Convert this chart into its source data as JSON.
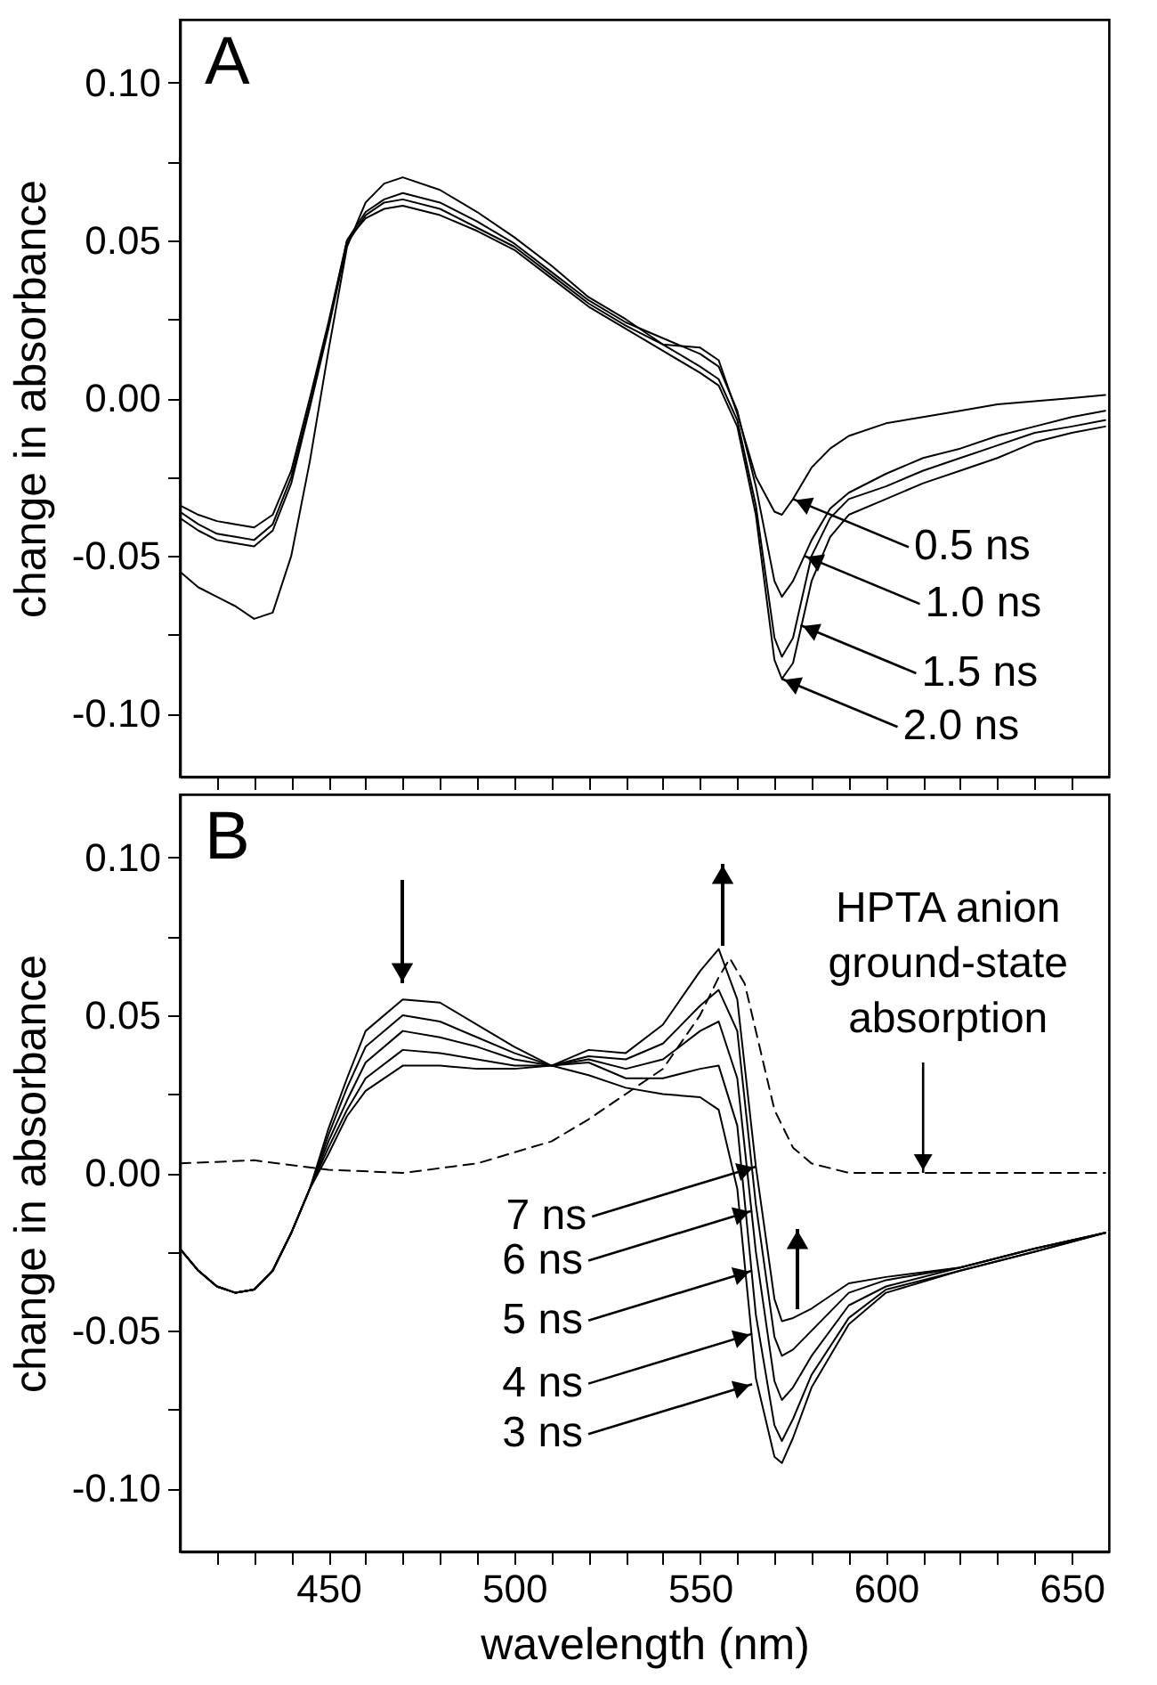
{
  "chart_data": [
    {
      "type": "line",
      "ylabel": "change in absorbance",
      "xlim": [
        410,
        660
      ],
      "ylim": [
        -0.12,
        0.12
      ],
      "tick_labels": "y",
      "xticks": [
        {
          "value": 420,
          "label": null
        },
        {
          "value": 430,
          "label": null
        },
        {
          "value": 440,
          "label": null
        },
        450,
        {
          "value": 460,
          "label": null
        },
        {
          "value": 470,
          "label": null
        },
        {
          "value": 480,
          "label": null
        },
        {
          "value": 490,
          "label": null
        },
        500,
        {
          "value": 510,
          "label": null
        },
        {
          "value": 520,
          "label": null
        },
        {
          "value": 530,
          "label": null
        },
        {
          "value": 540,
          "label": null
        },
        550,
        {
          "value": 560,
          "label": null
        },
        {
          "value": 570,
          "label": null
        },
        {
          "value": 580,
          "label": null
        },
        {
          "value": 590,
          "label": null
        },
        600,
        {
          "value": 610,
          "label": null
        },
        {
          "value": 620,
          "label": null
        },
        {
          "value": 630,
          "label": null
        },
        {
          "value": 640,
          "label": null
        },
        650
      ],
      "yticks": [
        {
          "value": -0.1,
          "label": "-0.10"
        },
        {
          "value": -0.075,
          "label": null
        },
        {
          "value": -0.05,
          "label": "-0.05"
        },
        {
          "value": -0.025,
          "label": null
        },
        {
          "value": 0,
          "label": "0.00"
        },
        {
          "value": 0.025,
          "label": null
        },
        {
          "value": 0.05,
          "label": "0.05"
        },
        {
          "value": 0.075,
          "label": null
        },
        {
          "value": 0.1,
          "label": "0.10"
        }
      ],
      "x": [
        410,
        415,
        420,
        425,
        430,
        435,
        440,
        445,
        450,
        455,
        460,
        465,
        470,
        480,
        490,
        500,
        510,
        520,
        530,
        540,
        550,
        555,
        560,
        565,
        570,
        572,
        575,
        580,
        585,
        590,
        600,
        610,
        620,
        630,
        640,
        650,
        659
      ],
      "series": [
        {
          "color": "#000000",
          "values": [
            -0.055,
            -0.06,
            -0.063,
            -0.066,
            -0.07,
            -0.068,
            -0.05,
            -0.02,
            0.015,
            0.048,
            0.062,
            0.068,
            0.07,
            0.066,
            0.059,
            0.051,
            0.042,
            0.032,
            0.025,
            0.017,
            0.016,
            0.012,
            -0.005,
            -0.025,
            -0.036,
            -0.037,
            -0.032,
            -0.022,
            -0.016,
            -0.012,
            -0.008,
            -0.006,
            -0.004,
            -0.002,
            -0.001,
            0.0,
            0.001
          ]
        },
        {
          "color": "#000000",
          "values": [
            -0.036,
            -0.04,
            -0.043,
            -0.044,
            -0.045,
            -0.04,
            -0.025,
            -0.002,
            0.023,
            0.05,
            0.059,
            0.063,
            0.065,
            0.062,
            0.056,
            0.049,
            0.04,
            0.031,
            0.024,
            0.019,
            0.014,
            0.01,
            -0.004,
            -0.028,
            -0.058,
            -0.063,
            -0.058,
            -0.045,
            -0.035,
            -0.03,
            -0.024,
            -0.019,
            -0.016,
            -0.012,
            -0.009,
            -0.006,
            -0.004
          ]
        },
        {
          "color": "#000000",
          "values": [
            -0.038,
            -0.042,
            -0.045,
            -0.046,
            -0.047,
            -0.042,
            -0.027,
            -0.003,
            0.022,
            0.049,
            0.058,
            0.062,
            0.063,
            0.06,
            0.054,
            0.048,
            0.039,
            0.03,
            0.023,
            0.017,
            0.01,
            0.006,
            -0.007,
            -0.034,
            -0.076,
            -0.082,
            -0.076,
            -0.05,
            -0.038,
            -0.032,
            -0.028,
            -0.023,
            -0.019,
            -0.015,
            -0.011,
            -0.009,
            -0.007
          ]
        },
        {
          "color": "#000000",
          "values": [
            -0.034,
            -0.037,
            -0.039,
            -0.04,
            -0.041,
            -0.037,
            -0.023,
            0.0,
            0.024,
            0.05,
            0.057,
            0.06,
            0.061,
            0.058,
            0.053,
            0.047,
            0.038,
            0.029,
            0.022,
            0.015,
            0.008,
            0.004,
            -0.009,
            -0.037,
            -0.083,
            -0.089,
            -0.084,
            -0.058,
            -0.044,
            -0.037,
            -0.032,
            -0.027,
            -0.023,
            -0.019,
            -0.014,
            -0.011,
            -0.009
          ]
        }
      ],
      "annotations": [
        "A",
        {
          "text": "0.5 ns",
          "x": 575,
          "y": -0.032
        },
        {
          "text": "1.0 ns",
          "x": 578,
          "y": -0.05
        },
        {
          "text": "1.5 ns",
          "x": 577,
          "y": -0.072
        },
        {
          "text": "2.0 ns",
          "x": 572,
          "y": -0.089
        }
      ]
    },
    {
      "type": "line",
      "xlabel": "wavelength (nm)",
      "ylabel": "change in absorbance",
      "xlim": [
        410,
        660
      ],
      "ylim": [
        -0.12,
        0.12
      ],
      "xticks": [
        {
          "value": 420,
          "label": null
        },
        {
          "value": 430,
          "label": null
        },
        {
          "value": 440,
          "label": null
        },
        450,
        {
          "value": 460,
          "label": null
        },
        {
          "value": 470,
          "label": null
        },
        {
          "value": 480,
          "label": null
        },
        {
          "value": 490,
          "label": null
        },
        500,
        {
          "value": 510,
          "label": null
        },
        {
          "value": 520,
          "label": null
        },
        {
          "value": 530,
          "label": null
        },
        {
          "value": 540,
          "label": null
        },
        550,
        {
          "value": 560,
          "label": null
        },
        {
          "value": 570,
          "label": null
        },
        {
          "value": 580,
          "label": null
        },
        {
          "value": 590,
          "label": null
        },
        600,
        {
          "value": 610,
          "label": null
        },
        {
          "value": 620,
          "label": null
        },
        {
          "value": 630,
          "label": null
        },
        {
          "value": 640,
          "label": null
        },
        650
      ],
      "yticks": [
        {
          "value": -0.1,
          "label": "-0.10"
        },
        {
          "value": -0.075,
          "label": null
        },
        {
          "value": -0.05,
          "label": "-0.05"
        },
        {
          "value": -0.025,
          "label": null
        },
        {
          "value": 0,
          "label": "0.00"
        },
        {
          "value": 0.025,
          "label": null
        },
        {
          "value": 0.05,
          "label": "0.05"
        },
        {
          "value": 0.075,
          "label": null
        },
        {
          "value": 0.1,
          "label": "0.10"
        }
      ],
      "x": [
        410,
        415,
        420,
        425,
        430,
        435,
        440,
        445,
        450,
        455,
        460,
        470,
        480,
        490,
        500,
        510,
        520,
        530,
        540,
        550,
        555,
        560,
        565,
        570,
        572,
        575,
        580,
        590,
        600,
        620,
        640,
        659
      ],
      "series": [
        {
          "color": "#000000",
          "values": [
            -0.024,
            -0.031,
            -0.036,
            -0.038,
            -0.037,
            -0.031,
            -0.019,
            -0.005,
            0.014,
            0.03,
            0.045,
            0.055,
            0.054,
            0.047,
            0.04,
            0.034,
            0.031,
            0.027,
            0.025,
            0.024,
            0.02,
            -0.005,
            -0.065,
            -0.09,
            -0.092,
            -0.084,
            -0.068,
            -0.048,
            -0.038,
            -0.031,
            -0.025,
            -0.019
          ]
        },
        {
          "color": "#000000",
          "values": [
            -0.024,
            -0.031,
            -0.036,
            -0.038,
            -0.037,
            -0.031,
            -0.019,
            -0.005,
            0.012,
            0.027,
            0.04,
            0.05,
            0.048,
            0.043,
            0.038,
            0.034,
            0.035,
            0.03,
            0.03,
            0.033,
            0.034,
            0.015,
            -0.045,
            -0.08,
            -0.085,
            -0.078,
            -0.064,
            -0.046,
            -0.037,
            -0.031,
            -0.025,
            -0.019
          ]
        },
        {
          "color": "#000000",
          "values": [
            -0.024,
            -0.031,
            -0.036,
            -0.038,
            -0.037,
            -0.031,
            -0.019,
            -0.005,
            0.01,
            0.023,
            0.035,
            0.045,
            0.043,
            0.04,
            0.036,
            0.034,
            0.036,
            0.033,
            0.036,
            0.045,
            0.048,
            0.03,
            -0.025,
            -0.066,
            -0.072,
            -0.068,
            -0.058,
            -0.042,
            -0.036,
            -0.03,
            -0.024,
            -0.019
          ]
        },
        {
          "color": "#000000",
          "values": [
            -0.024,
            -0.031,
            -0.036,
            -0.038,
            -0.037,
            -0.031,
            -0.019,
            -0.005,
            0.008,
            0.02,
            0.03,
            0.039,
            0.038,
            0.036,
            0.034,
            0.034,
            0.037,
            0.036,
            0.041,
            0.053,
            0.058,
            0.045,
            -0.01,
            -0.052,
            -0.058,
            -0.056,
            -0.05,
            -0.038,
            -0.034,
            -0.03,
            -0.024,
            -0.019
          ]
        },
        {
          "color": "#000000",
          "values": [
            -0.024,
            -0.031,
            -0.036,
            -0.038,
            -0.037,
            -0.031,
            -0.019,
            -0.005,
            0.006,
            0.018,
            0.026,
            0.034,
            0.034,
            0.033,
            0.033,
            0.034,
            0.039,
            0.038,
            0.047,
            0.064,
            0.071,
            0.055,
            0.002,
            -0.04,
            -0.047,
            -0.046,
            -0.043,
            -0.035,
            -0.033,
            -0.03,
            -0.024,
            -0.019
          ]
        },
        {
          "color": "#000000",
          "line_style": "dashed",
          "x": [
            410,
            430,
            450,
            470,
            490,
            510,
            520,
            530,
            540,
            550,
            555,
            558,
            562,
            566,
            570,
            575,
            580,
            590,
            610,
            659
          ],
          "values": [
            0.003,
            0.004,
            0.001,
            0.0,
            0.003,
            0.01,
            0.017,
            0.025,
            0.033,
            0.05,
            0.062,
            0.068,
            0.06,
            0.04,
            0.02,
            0.008,
            0.003,
            0.0,
            0.0,
            0.0
          ]
        }
      ],
      "annotations": [
        "B",
        {
          "text": "7 ns",
          "x": 565,
          "y": 0.002
        },
        {
          "text": "6 ns",
          "x": 564,
          "y": -0.012
        },
        {
          "text": "5 ns",
          "x": 564,
          "y": -0.031
        },
        {
          "text": "4 ns",
          "x": 564,
          "y": -0.051
        },
        {
          "text": "3 ns",
          "x": 564,
          "y": -0.067
        },
        {
          "text": "HPTA anion\nground-state\nabsorption",
          "x": 610,
          "y": 0.0
        }
      ]
    }
  ]
}
